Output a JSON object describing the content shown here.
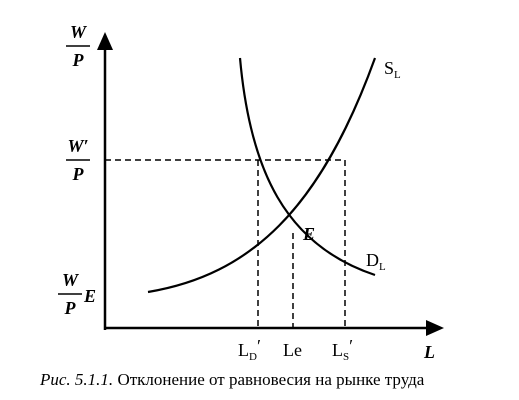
{
  "axes": {
    "y_label": {
      "num": "W",
      "den": "P"
    },
    "x_label": "L"
  },
  "levels": {
    "high_wage": {
      "num": "W′",
      "den": "P"
    },
    "equilibrium_wage": {
      "num": "W",
      "den": "P",
      "suffix": "E"
    }
  },
  "curves": {
    "supply": {
      "label": "S",
      "sub": "L"
    },
    "demand": {
      "label": "D",
      "sub": "L"
    }
  },
  "point": "E",
  "x_marks": [
    {
      "label": "L",
      "sub": "D",
      "prime": "′"
    },
    {
      "label": "Le"
    },
    {
      "label": "L",
      "sub": "S",
      "prime": "′"
    }
  ],
  "caption": {
    "prefix": "Рис. 5.1.1.",
    "text": "Отклонение от равновесия на рынке труда"
  }
}
